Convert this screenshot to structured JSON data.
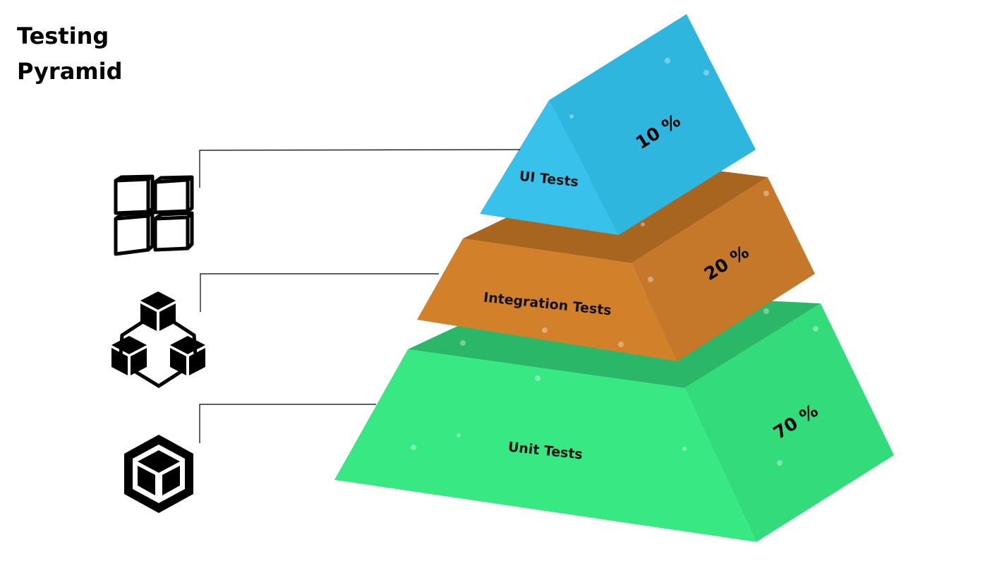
{
  "title": {
    "line1": "Testing",
    "line2": "Pyramid"
  },
  "layers": [
    {
      "key": "ui",
      "label": "UI Tests",
      "percent_label": "10 %",
      "percent": 10,
      "icon": "grid-cubes-icon",
      "colors": {
        "front": "#38c1ea",
        "side": "#2eb6de",
        "top": "#2aa9d0"
      }
    },
    {
      "key": "integration",
      "label": "Integration Tests",
      "percent_label": "20 %",
      "percent": 20,
      "icon": "connected-cubes-icon",
      "colors": {
        "front": "#d2802a",
        "side": "#c5772a",
        "top": "#a86520"
      }
    },
    {
      "key": "unit",
      "label": "Unit Tests",
      "percent_label": "70 %",
      "percent": 70,
      "icon": "single-cube-icon",
      "colors": {
        "front": "#37e883",
        "side": "#32dc7a",
        "top": "#2ab868"
      }
    }
  ]
}
